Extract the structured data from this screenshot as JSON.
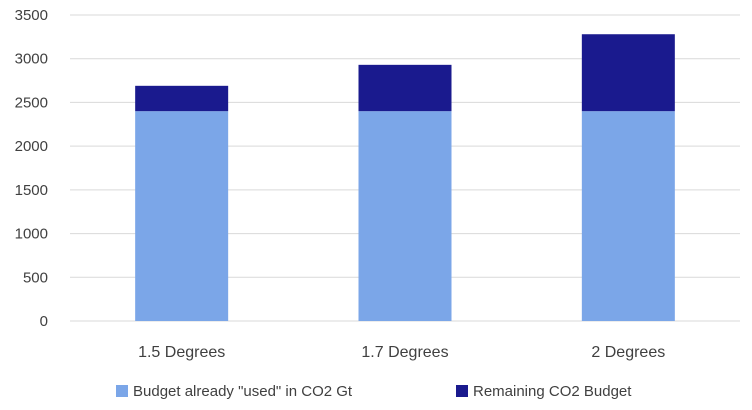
{
  "chart_data": {
    "type": "bar",
    "stacked": true,
    "title": "",
    "xlabel": "",
    "ylabel": "",
    "categories": [
      "1.5 Degrees",
      "1.7 Degrees",
      "2 Degrees"
    ],
    "series": [
      {
        "name": "Budget already \"used\" in CO2 Gt",
        "color": "#7ba6e8",
        "values": [
          2400,
          2400,
          2400
        ]
      },
      {
        "name": "Remaining CO2 Budget",
        "color": "#1a1a8e",
        "values": [
          290,
          530,
          880
        ]
      }
    ],
    "ylim": [
      0,
      3500
    ],
    "yticks": [
      0,
      500,
      1000,
      1500,
      2000,
      2500,
      3000,
      3500
    ],
    "grid": true,
    "legend_position": "bottom"
  }
}
